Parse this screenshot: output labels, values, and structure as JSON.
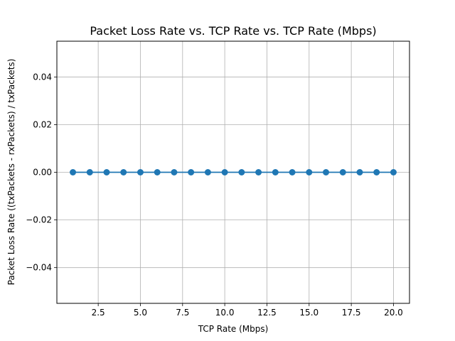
{
  "chart_data": {
    "type": "line",
    "title": "Packet Loss Rate vs. TCP Rate vs. TCP Rate (Mbps)",
    "xlabel": "TCP Rate (Mbps)",
    "ylabel": "Packet Loss Rate ((txPackets - rxPackets) / txPackets)",
    "xlim": [
      0.05,
      20.95
    ],
    "ylim": [
      -0.055,
      0.055
    ],
    "xticks": [
      2.5,
      5.0,
      7.5,
      10.0,
      12.5,
      15.0,
      17.5,
      20.0
    ],
    "xtick_labels": [
      "2.5",
      "5.0",
      "7.5",
      "10.0",
      "12.5",
      "15.0",
      "17.5",
      "20.0"
    ],
    "yticks": [
      -0.04,
      -0.02,
      0.0,
      0.02,
      0.04
    ],
    "ytick_labels": [
      "−0.04",
      "−0.02",
      "0.00",
      "0.02",
      "0.04"
    ],
    "grid": true,
    "series": [
      {
        "color": "#1f77b4",
        "marker": "circle",
        "x": [
          1,
          2,
          3,
          4,
          5,
          6,
          7,
          8,
          9,
          10,
          11,
          12,
          13,
          14,
          15,
          16,
          17,
          18,
          19,
          20
        ],
        "y": [
          0,
          0,
          0,
          0,
          0,
          0,
          0,
          0,
          0,
          0,
          0,
          0,
          0,
          0,
          0,
          0,
          0,
          0,
          0,
          0
        ]
      }
    ]
  }
}
